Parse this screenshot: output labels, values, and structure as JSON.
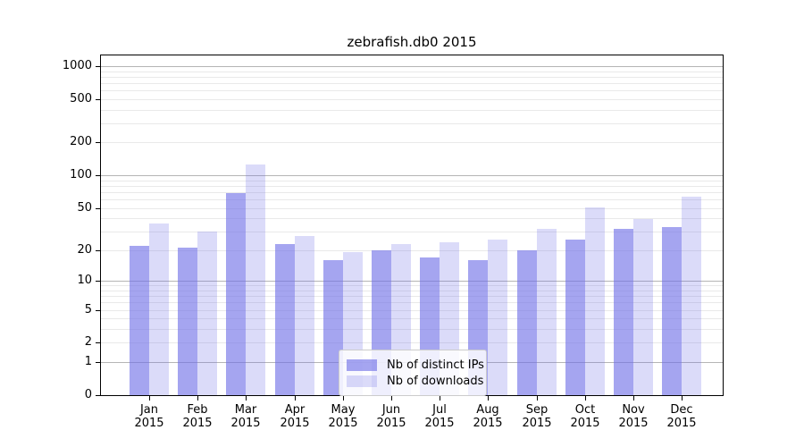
{
  "title": "zebrafish.db0 2015",
  "chart_data": {
    "type": "bar",
    "title": "zebrafish.db0 2015",
    "categories": [
      "Jan",
      "Feb",
      "Mar",
      "Apr",
      "May",
      "Jun",
      "Jul",
      "Aug",
      "Sep",
      "Oct",
      "Nov",
      "Dec"
    ],
    "year": "2015",
    "series": [
      {
        "name": "Nb of distinct IPs",
        "values": [
          22,
          21,
          69,
          23,
          16,
          20,
          17,
          16,
          20,
          25,
          32,
          33
        ]
      },
      {
        "name": "Nb of downloads",
        "values": [
          36,
          30,
          127,
          27,
          19,
          23,
          24,
          25,
          32,
          51,
          39,
          64
        ]
      }
    ],
    "y_scale": "log10(value+1)",
    "y_axis_top_value": 1252,
    "y_ticks": [
      0,
      1,
      2,
      5,
      10,
      20,
      50,
      100,
      200,
      500,
      1000
    ],
    "y_major_gridlines": [
      1,
      10,
      100,
      1000
    ],
    "y_minor_gridlines": [
      2,
      3,
      4,
      5,
      6,
      7,
      8,
      9,
      20,
      30,
      40,
      50,
      60,
      70,
      80,
      90,
      200,
      300,
      400,
      500,
      600,
      700,
      800,
      900
    ],
    "grid": true,
    "legend_position": "lower center"
  },
  "colors": {
    "bar_ips": "rgba(110,110,230,0.62)",
    "bar_downloads": "rgba(110,110,230,0.25)",
    "grid_major": "#b5b5b5",
    "grid_minor": "#e9e9e9",
    "axis": "#000000",
    "legend_border": "#cccccc",
    "legend_bg": "rgba(255,255,255,0.82)",
    "background": "#ffffff"
  }
}
